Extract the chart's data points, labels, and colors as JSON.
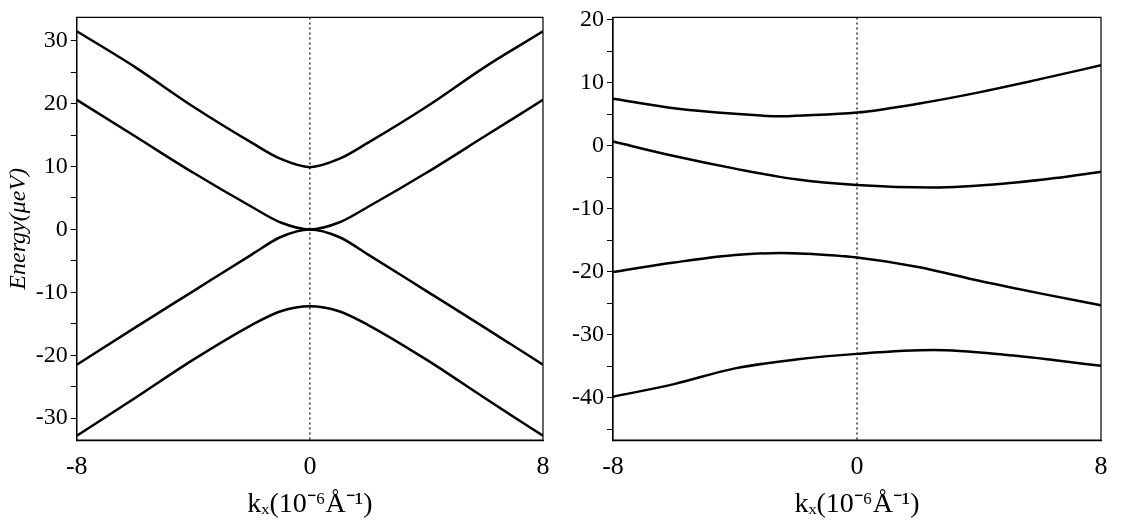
{
  "chart_data": [
    {
      "type": "line",
      "ylabel": "Energy(μeV)",
      "xlabel": "kₓ(10⁻⁶Å⁻¹)",
      "xlim": [
        -8,
        8
      ],
      "xticks": [
        -8,
        0,
        8
      ],
      "ylim": [
        -33.5,
        33.7
      ],
      "yticks": [
        -30,
        {
          "value": -25,
          "label": null
        },
        -20,
        {
          "value": -15,
          "label": null
        },
        -10,
        {
          "value": -5,
          "label": null
        },
        0,
        {
          "value": 5,
          "label": null
        },
        10,
        {
          "value": 15,
          "label": null
        },
        20,
        {
          "value": 25,
          "label": null
        },
        30
      ],
      "x": [
        -8,
        -6,
        -4,
        -2,
        -1,
        0,
        1,
        2,
        4,
        6,
        8
      ],
      "series": [
        {
          "color": "#000000",
          "values": [
            31.5,
            25.8,
            19.5,
            13.8,
            11.2,
            9.9,
            11.2,
            13.8,
            19.5,
            25.8,
            31.5
          ]
        },
        {
          "color": "#000000",
          "values": [
            20.6,
            14.8,
            9,
            3.6,
            1.1,
            0,
            1.1,
            3.6,
            9,
            14.8,
            20.6
          ]
        },
        {
          "color": "#000000",
          "values": [
            -21.5,
            -15.6,
            -9.8,
            -4,
            -1.2,
            0,
            -1.2,
            -4,
            -9.8,
            -15.6,
            -21.5
          ]
        },
        {
          "color": "#000000",
          "values": [
            -32.8,
            -26.8,
            -20.7,
            -15.2,
            -13,
            -12.2,
            -13,
            -15.2,
            -20.7,
            -26.8,
            -32.8
          ]
        }
      ],
      "ref_lines": [
        {
          "axis": "x",
          "value": 0,
          "line_style": "dotted",
          "color": "#000000"
        }
      ]
    },
    {
      "type": "line",
      "xlabel": "kₓ(10⁻⁶Å⁻¹)",
      "xlim": [
        -8,
        8
      ],
      "xticks": [
        -8,
        0,
        8
      ],
      "ylim": [
        -46.7,
        20.4
      ],
      "yticks": [
        {
          "value": -45,
          "label": null
        },
        -40,
        {
          "value": -35,
          "label": null
        },
        -30,
        {
          "value": -25,
          "label": null
        },
        -20,
        {
          "value": -15,
          "label": null
        },
        -10,
        {
          "value": -5,
          "label": null
        },
        0,
        {
          "value": 5,
          "label": null
        },
        10,
        {
          "value": 15,
          "label": null
        },
        20
      ],
      "series": [
        {
          "color": "#000000",
          "x": [
            -8,
            -6,
            -4,
            -2.5,
            -2,
            0,
            2,
            4,
            6,
            8
          ],
          "values": [
            7.5,
            6,
            5.1,
            4.7,
            4.8,
            5.3,
            6.7,
            8.5,
            10.6,
            12.8
          ]
        },
        {
          "color": "#000000",
          "x": [
            -8,
            -6,
            -4,
            -2,
            0,
            2.5,
            5,
            6.5,
            8
          ],
          "values": [
            0.7,
            -1.6,
            -3.6,
            -5.3,
            -6.2,
            -6.6,
            -5.9,
            -5.1,
            -4.1
          ]
        },
        {
          "color": "#000000",
          "x": [
            -8,
            -6,
            -4,
            -2.5,
            -1,
            0,
            2,
            4,
            6,
            8
          ],
          "values": [
            -20,
            -18.5,
            -17.3,
            -17,
            -17.3,
            -17.7,
            -19.2,
            -21.4,
            -23.4,
            -25.3
          ]
        },
        {
          "color": "#000000",
          "x": [
            -8,
            -6,
            -4,
            -2,
            0,
            2.5,
            5,
            6.5,
            8
          ],
          "values": [
            -39.8,
            -37.8,
            -35.3,
            -33.9,
            -33,
            -32.4,
            -33.2,
            -34,
            -34.9
          ]
        }
      ],
      "ref_lines": [
        {
          "axis": "x",
          "value": 0,
          "line_style": "dotted",
          "color": "#000000"
        }
      ]
    }
  ]
}
